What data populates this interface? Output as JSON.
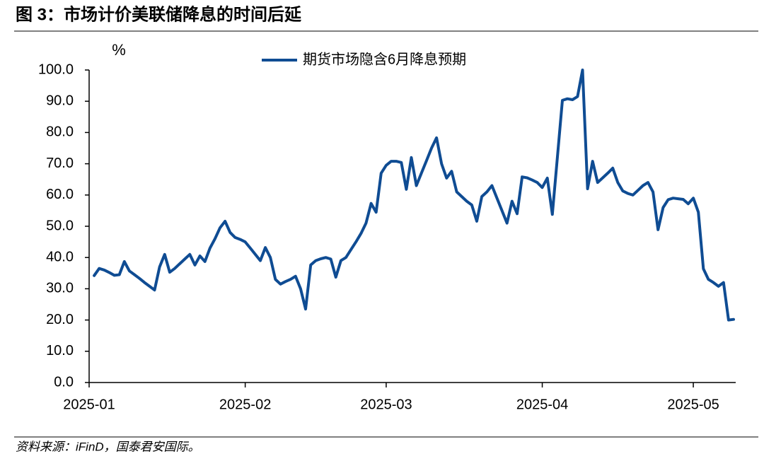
{
  "chart_data": {
    "type": "line",
    "title": "图 3：市场计价美联储降息的时间后延",
    "source": "资料来源：iFinD，国泰君安国际。",
    "y_unit": "%",
    "categories": [
      "2025-01",
      null,
      null,
      null,
      null,
      null,
      null,
      null,
      null,
      null,
      null,
      null,
      null,
      null,
      null,
      null,
      null,
      null,
      null,
      null,
      null,
      null,
      null,
      null,
      null,
      null,
      null,
      null,
      null,
      null,
      null,
      "2025-02",
      null,
      null,
      null,
      null,
      null,
      null,
      null,
      null,
      null,
      null,
      null,
      null,
      null,
      null,
      null,
      null,
      null,
      null,
      null,
      null,
      null,
      null,
      null,
      null,
      null,
      null,
      null,
      "2025-03",
      null,
      null,
      null,
      null,
      null,
      null,
      null,
      null,
      null,
      null,
      null,
      null,
      null,
      null,
      null,
      null,
      null,
      null,
      null,
      null,
      null,
      null,
      null,
      null,
      null,
      null,
      null,
      null,
      null,
      null,
      "2025-04",
      null,
      null,
      null,
      null,
      null,
      null,
      null,
      null,
      null,
      null,
      null,
      null,
      null,
      null,
      null,
      null,
      null,
      null,
      null,
      null,
      null,
      null,
      null,
      null,
      null,
      null,
      null,
      null,
      null,
      "2025-05",
      null,
      null,
      null,
      null,
      null,
      null,
      null,
      null
    ],
    "series": [
      {
        "name": "期货市场隐含6月降息预期",
        "color": "#0f4c93",
        "values": [
          null,
          34.2,
          36.5,
          36,
          35.2,
          34.3,
          34.5,
          38.7,
          35.7,
          34.5,
          33.3,
          32,
          30.8,
          29.6,
          37,
          41,
          35.3,
          36.5,
          38,
          39.5,
          41,
          37.6,
          40.5,
          38.7,
          43,
          46,
          49.5,
          51.6,
          48,
          46.4,
          45.8,
          45,
          43,
          41,
          39,
          43.2,
          40,
          33,
          31.5,
          32.3,
          33,
          34,
          30,
          23.5,
          37.6,
          39,
          39.6,
          40,
          39.5,
          33.7,
          39,
          40,
          42.5,
          45,
          47.7,
          51,
          57.3,
          54.5,
          67,
          69.5,
          70.8,
          70.8,
          70.4,
          61.8,
          72,
          63,
          67,
          71,
          75,
          78.3,
          70,
          65.4,
          67.6,
          61,
          59.5,
          58,
          56.8,
          51.6,
          59.5,
          61,
          63,
          59,
          55,
          51,
          58,
          54,
          65.8,
          65.5,
          64.8,
          64,
          62.4,
          65.4,
          53.8,
          72,
          90.3,
          90.8,
          90.5,
          91.5,
          100,
          62,
          70.8,
          64,
          65.5,
          67,
          68.6,
          64,
          61.3,
          60.5,
          60,
          61.5,
          63,
          64,
          61,
          48.9,
          56,
          58.5,
          59,
          58.8,
          58.6,
          57.2,
          59,
          54.5,
          36.4,
          33,
          32,
          30.8,
          32,
          20,
          20.2
        ]
      }
    ],
    "ylim": [
      0,
      100
    ],
    "yticks": [
      {
        "value": 0,
        "label": "0.0"
      },
      {
        "value": 10,
        "label": "10.0"
      },
      {
        "value": 20,
        "label": "20.0"
      },
      {
        "value": 30,
        "label": "30.0"
      },
      {
        "value": 40,
        "label": "40.0"
      },
      {
        "value": 50,
        "label": "50.0"
      },
      {
        "value": 60,
        "label": "60.0"
      },
      {
        "value": 70,
        "label": "70.0"
      },
      {
        "value": 80,
        "label": "80.0"
      },
      {
        "value": 90,
        "label": "90.0"
      },
      {
        "value": 100,
        "label": "100.0"
      }
    ],
    "grid": false,
    "legend": "top"
  }
}
